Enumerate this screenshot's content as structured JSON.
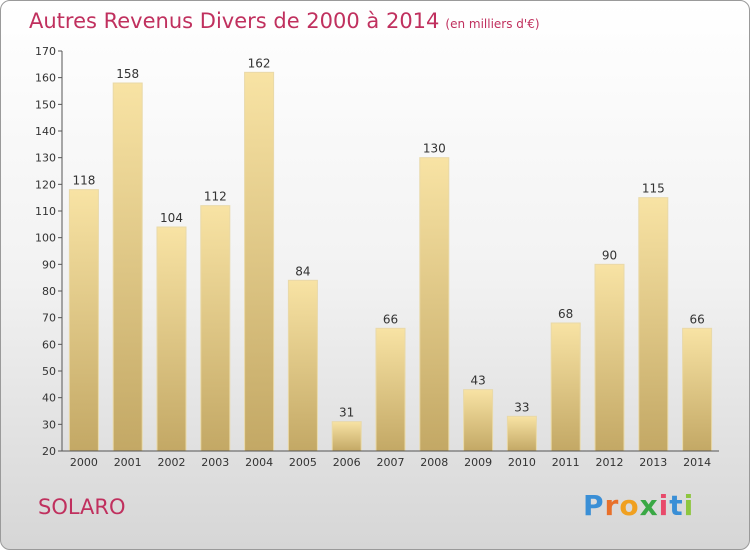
{
  "chart_data": {
    "type": "bar",
    "title": "Autres Revenus Divers de 2000 à 2014",
    "subtitle": "(en milliers d'€)",
    "categories": [
      "2000",
      "2001",
      "2002",
      "2003",
      "2004",
      "2005",
      "2006",
      "2007",
      "2008",
      "2009",
      "2010",
      "2011",
      "2012",
      "2013",
      "2014"
    ],
    "values": [
      118,
      158,
      104,
      112,
      162,
      84,
      31,
      66,
      130,
      43,
      33,
      68,
      90,
      115,
      66
    ],
    "ylim": [
      20,
      170
    ],
    "yticks": [
      20,
      30,
      40,
      50,
      60,
      70,
      80,
      90,
      100,
      110,
      120,
      130,
      140,
      150,
      160,
      170
    ],
    "grid": false,
    "colors": {
      "bar_light": "#f5dc9a",
      "bar_dark": "#c7ad6a",
      "title": "#c0305e"
    }
  },
  "location": "SOLARO",
  "brand": {
    "letters": [
      "P",
      "r",
      "o",
      "x",
      "i",
      "t",
      "i"
    ],
    "colors": [
      "#3a8fd6",
      "#e8702a",
      "#f0a020",
      "#3aa845",
      "#e84a6a",
      "#3a8fd6",
      "#8dc63f"
    ]
  }
}
